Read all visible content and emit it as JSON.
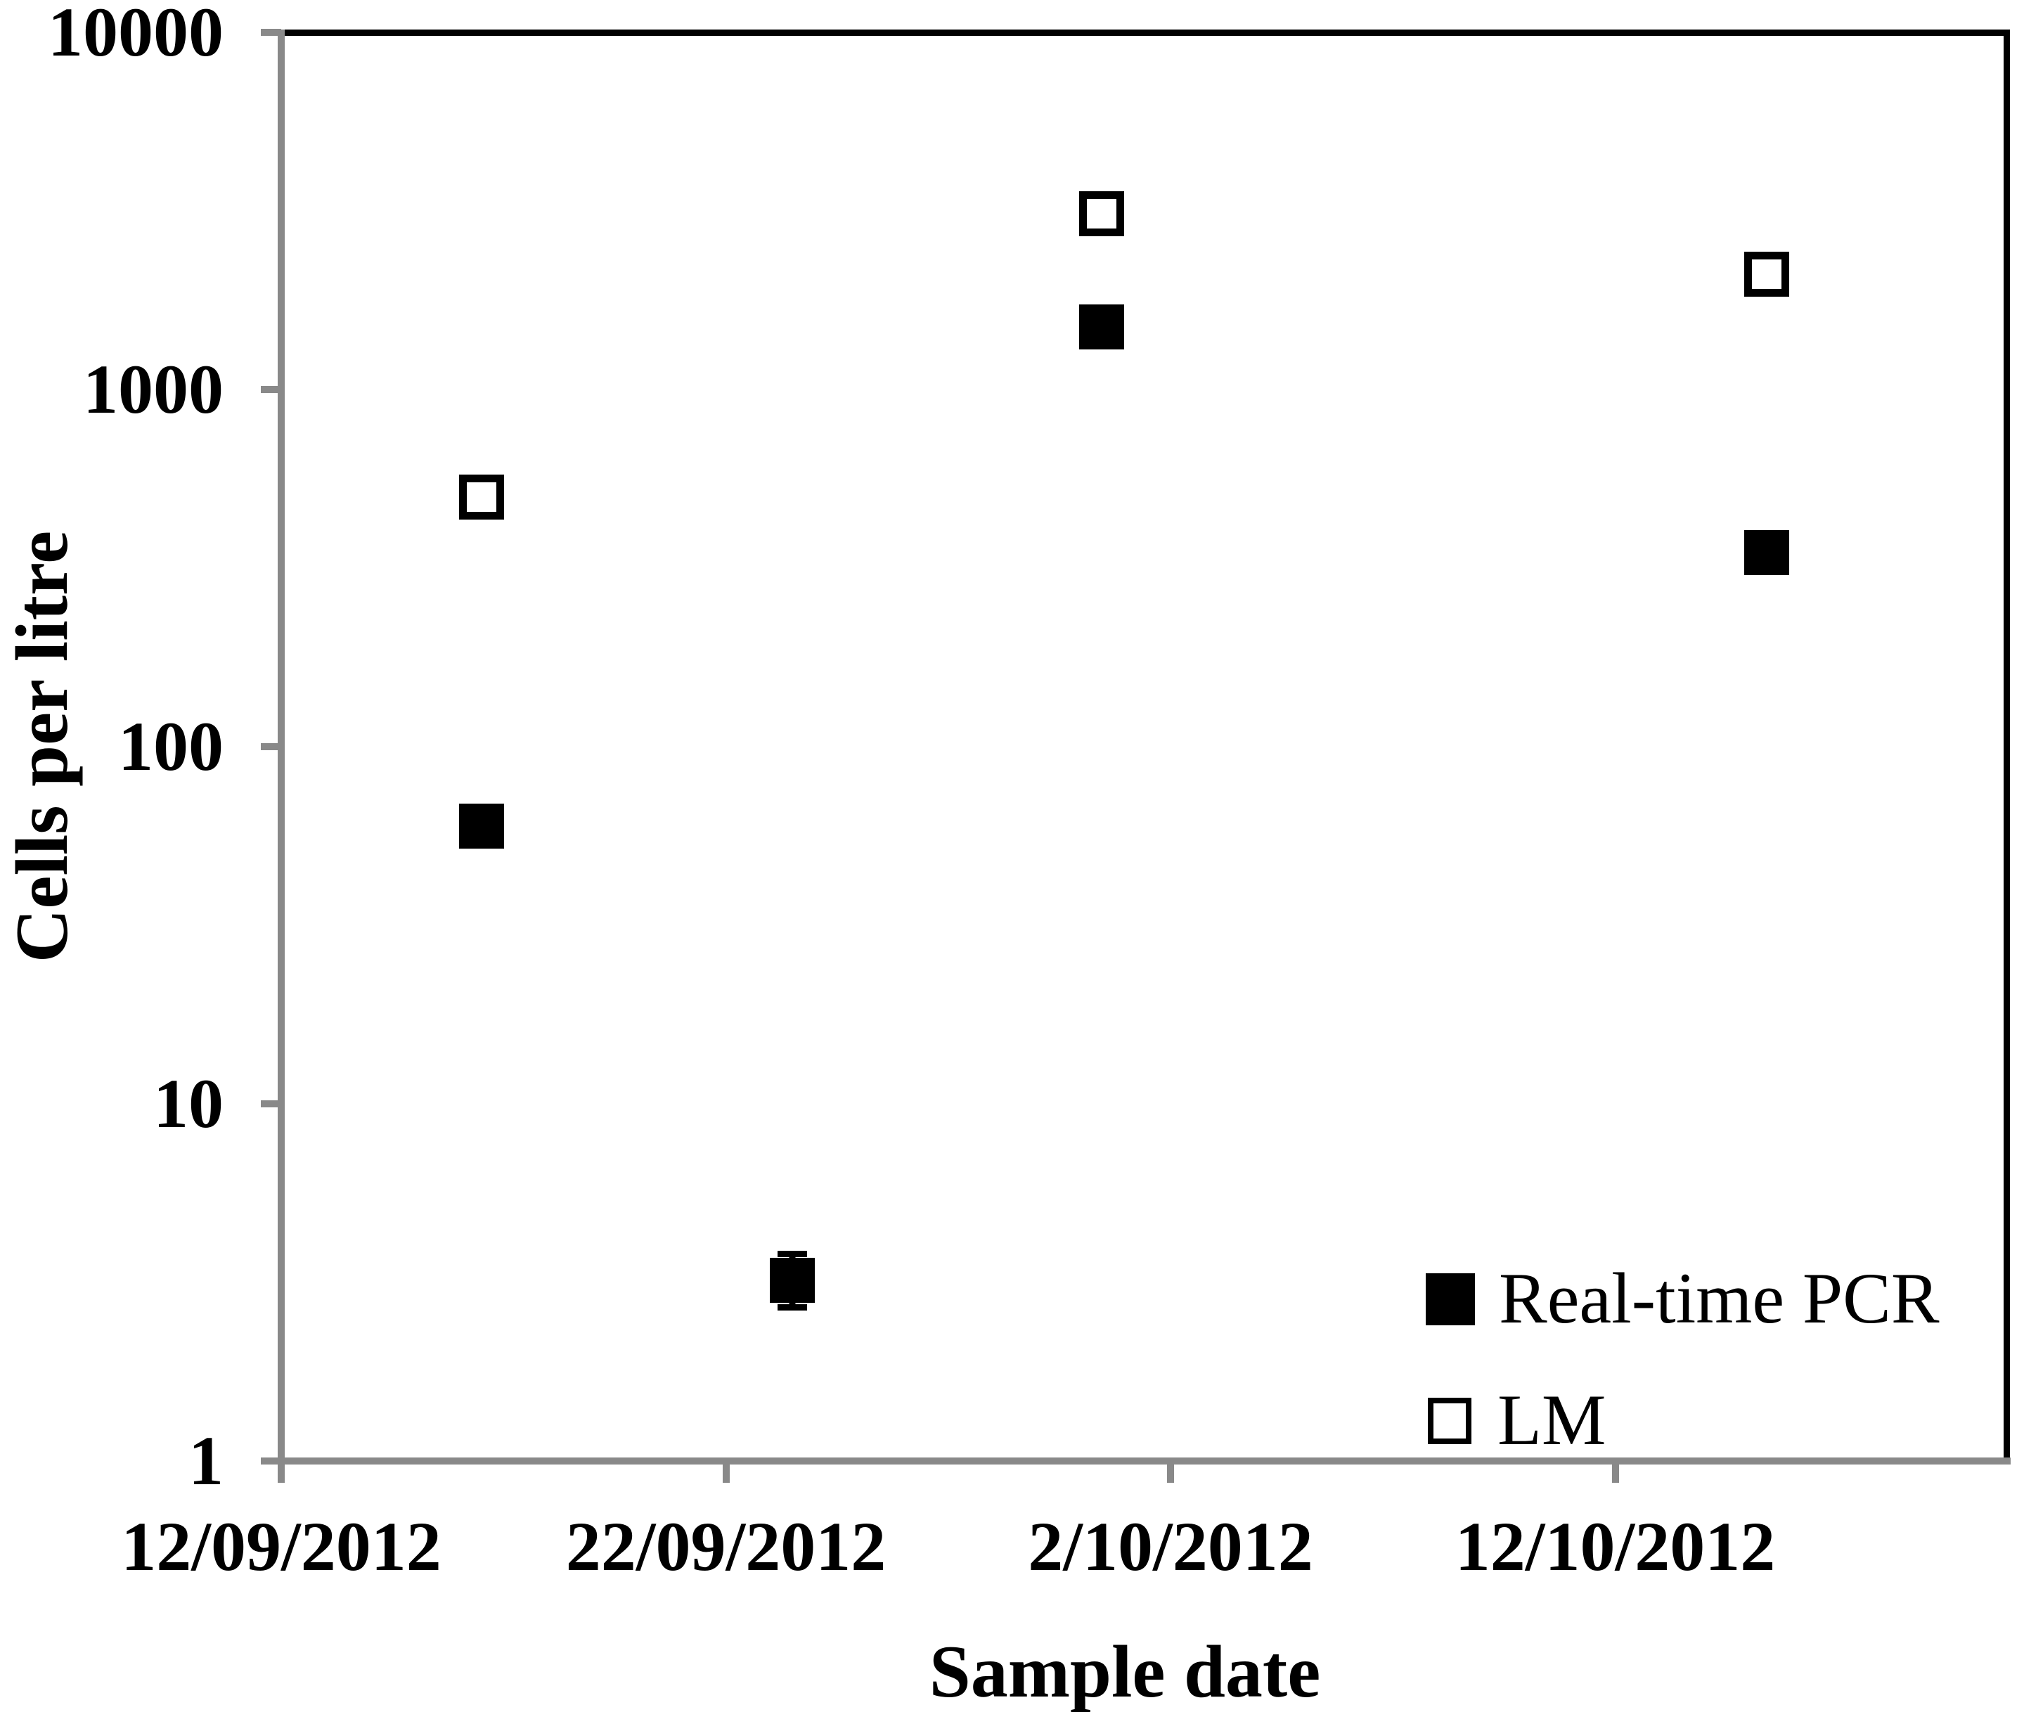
{
  "figure": {
    "x_axis_title": "Sample date",
    "y_axis_title": "Cells per litre"
  },
  "legend": {
    "items": [
      {
        "label": "Real-time PCR",
        "marker": "filled-square",
        "color": "#000000"
      },
      {
        "label": "LM",
        "marker": "open-square",
        "color": "#000000"
      }
    ]
  },
  "colors": {
    "axis_gray": "#898989",
    "marker_black": "#000000",
    "background": "#ffffff"
  },
  "chart_data": {
    "type": "scatter",
    "title": "",
    "xlabel": "Sample date",
    "ylabel": "Cells per litre",
    "x_axis": {
      "scale": "date-linear",
      "tick_labels": [
        "12/09/2012",
        "22/09/2012",
        "2/10/2012",
        "12/10/2012"
      ],
      "tick_day_offsets": [
        0,
        10,
        20,
        30
      ],
      "range_days": [
        0,
        39
      ]
    },
    "y_axis": {
      "scale": "log10",
      "ticks": [
        {
          "label": "1",
          "value": 1
        },
        {
          "label": "10",
          "value": 10
        },
        {
          "label": "100",
          "value": 100
        },
        {
          "label": "1000",
          "value": 1000
        },
        {
          "label": "10000",
          "value": 10000
        }
      ],
      "range": [
        1,
        10000
      ],
      "grid": false
    },
    "legend_position": "inside-bottom-right",
    "series": [
      {
        "name": "Real-time PCR",
        "marker": "filled-square",
        "points": [
          {
            "approx_date": "17/09/2012",
            "day_offset": 4.5,
            "value": 60
          },
          {
            "approx_date": "24/09/2012",
            "day_offset": 11.5,
            "value": 3.2,
            "error_low": 2.7,
            "error_high": 3.8
          },
          {
            "approx_date": "30/09/2012",
            "day_offset": 18.45,
            "value": 1500
          },
          {
            "approx_date": "15/10/2012",
            "day_offset": 33.4,
            "value": 350
          }
        ]
      },
      {
        "name": "LM",
        "marker": "open-square",
        "points": [
          {
            "approx_date": "17/09/2012",
            "day_offset": 4.5,
            "value": 500
          },
          {
            "approx_date": "30/09/2012",
            "day_offset": 18.45,
            "value": 3100
          },
          {
            "approx_date": "15/10/2012",
            "day_offset": 33.4,
            "value": 2100
          }
        ]
      }
    ]
  }
}
